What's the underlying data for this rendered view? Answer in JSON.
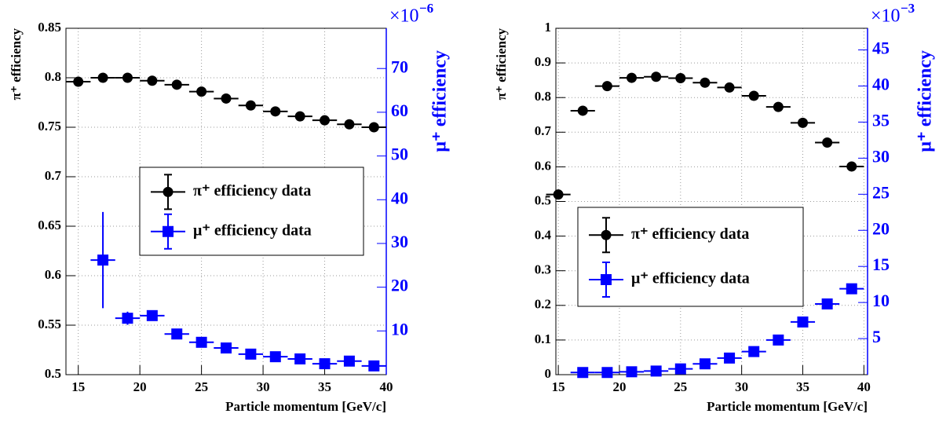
{
  "chart_data": [
    {
      "type": "scatter",
      "x_label": "Particle momentum [GeV/c]",
      "y_label": "π⁺ efficiency",
      "y2_label": "μ⁺ efficiency",
      "y2_multiplier": {
        "base": "×10",
        "exponent": "−6"
      },
      "xlim": [
        14,
        40
      ],
      "xticks": [
        15,
        20,
        25,
        30,
        35,
        40
      ],
      "ylim": [
        0.5,
        0.85
      ],
      "yticks": [
        0.5,
        0.55,
        0.6,
        0.65,
        0.7,
        0.75,
        0.8,
        0.85
      ],
      "y2lim": [
        0,
        79.2
      ],
      "y2ticks": [
        10,
        20,
        30,
        40,
        50,
        60,
        70
      ],
      "xerr": 1,
      "grid": true,
      "series": [
        {
          "name": "π⁺ efficiency data",
          "color": "#000000",
          "marker": "circle",
          "x": [
            15,
            17,
            19,
            21,
            23,
            25,
            27,
            29,
            31,
            33,
            35,
            37,
            39
          ],
          "values": [
            0.796,
            0.8,
            0.8,
            0.797,
            0.793,
            0.786,
            0.779,
            0.772,
            0.766,
            0.761,
            0.757,
            0.753,
            0.75
          ]
        },
        {
          "name": "μ⁺ efficiency data",
          "color": "#0000ff",
          "marker": "square",
          "axis": "y2",
          "x": [
            17,
            19,
            21,
            23,
            25,
            27,
            29,
            31,
            33,
            35,
            37,
            39
          ],
          "values": [
            26.2,
            12.9,
            13.5,
            9.3,
            7.4,
            6.1,
            4.7,
            4.1,
            3.6,
            2.5,
            3.1,
            2.0
          ],
          "errors": [
            11,
            1.5,
            0.8,
            0.6,
            0.5,
            0.4,
            0.4,
            0.3,
            0.3,
            0.3,
            0.3,
            0.3
          ]
        }
      ]
    },
    {
      "type": "scatter",
      "x_label": "Particle momentum [GeV/c]",
      "y_label": "π⁺ efficiency",
      "y2_label": "μ⁺ efficiency",
      "y2_multiplier": {
        "base": "×10",
        "exponent": "−3"
      },
      "xlim": [
        14.8,
        40.3
      ],
      "xticks": [
        15,
        20,
        25,
        30,
        35,
        40
      ],
      "ylim": [
        0,
        1
      ],
      "yticks": [
        0,
        0.1,
        0.2,
        0.3,
        0.4,
        0.5,
        0.6,
        0.7,
        0.8,
        0.9,
        1
      ],
      "y2lim": [
        0,
        48
      ],
      "y2ticks": [
        5,
        10,
        15,
        20,
        25,
        30,
        35,
        40,
        45
      ],
      "xerr": 1,
      "grid": true,
      "series": [
        {
          "name": "π⁺ efficiency data",
          "color": "#000000",
          "marker": "circle",
          "x": [
            15,
            17,
            19,
            21,
            23,
            25,
            27,
            29,
            31,
            33,
            35,
            37,
            39
          ],
          "values": [
            0.52,
            0.762,
            0.833,
            0.857,
            0.86,
            0.856,
            0.843,
            0.829,
            0.805,
            0.773,
            0.727,
            0.67,
            0.601
          ]
        },
        {
          "name": "μ⁺ efficiency data",
          "color": "#0000ff",
          "marker": "square",
          "axis": "y2",
          "x": [
            17,
            19,
            21,
            23,
            25,
            27,
            29,
            31,
            33,
            35,
            37,
            39
          ],
          "values": [
            0.3,
            0.3,
            0.4,
            0.5,
            0.8,
            1.5,
            2.3,
            3.2,
            4.8,
            7.3,
            9.8,
            11.9
          ],
          "errors": [
            0.1,
            0.1,
            0.1,
            0.1,
            0.1,
            0.1,
            0.1,
            0.1,
            0.1,
            0.2,
            0.2,
            0.2
          ]
        }
      ]
    }
  ]
}
